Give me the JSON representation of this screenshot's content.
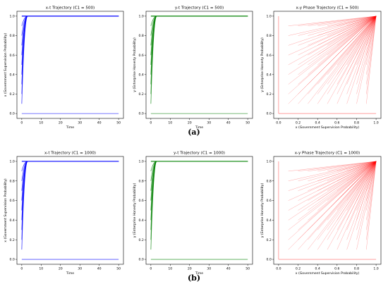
{
  "captions": [
    "(a)",
    "(b)"
  ],
  "colors": {
    "x_traj": "#0000ff",
    "y_traj": "#008000",
    "phase": "#ff0000",
    "axis": "#000000"
  },
  "chart_data": [
    {
      "type": "line",
      "title": "x-t Trajectory (C1 = 500)",
      "xlabel": "Time",
      "ylabel": "x (Government Supervision Probability)",
      "xlim": [
        0,
        50
      ],
      "ylim": [
        0,
        1
      ],
      "xticks": [
        0,
        10,
        20,
        30,
        40,
        50
      ],
      "yticks": [
        0.0,
        0.2,
        0.4,
        0.6,
        0.8,
        1.0
      ],
      "grid": false,
      "color": "#0000ff",
      "initial_values": [
        0.1,
        0.2,
        0.3,
        0.4,
        0.5,
        0.6,
        0.7,
        0.8,
        0.9
      ],
      "converge_time": 3,
      "series": [
        {
          "x": [
            0,
            50
          ],
          "values": [
            1.0,
            1.0
          ]
        },
        {
          "x": [
            0,
            50
          ],
          "values": [
            0.0,
            0.0
          ]
        }
      ]
    },
    {
      "type": "line",
      "title": "y-t Trajectory (C1 = 500)",
      "xlabel": "Time",
      "ylabel": "y (Enterprise Honesty Probability)",
      "xlim": [
        0,
        50
      ],
      "ylim": [
        0,
        1
      ],
      "xticks": [
        0,
        10,
        20,
        30,
        40,
        50
      ],
      "yticks": [
        0.0,
        0.2,
        0.4,
        0.6,
        0.8,
        1.0
      ],
      "grid": false,
      "color": "#008000",
      "initial_values": [
        0.1,
        0.2,
        0.3,
        0.4,
        0.5,
        0.6,
        0.7,
        0.8,
        0.9
      ],
      "converge_time": 3,
      "series": [
        {
          "x": [
            0,
            50
          ],
          "values": [
            1.0,
            1.0
          ]
        },
        {
          "x": [
            0,
            50
          ],
          "values": [
            0.0,
            0.0
          ]
        }
      ]
    },
    {
      "type": "line",
      "title": "x-y Phase Trajectory (C1 = 500)",
      "xlabel": "x (Government Supervision Probability)",
      "ylabel": "y (Enterprise Honesty Probability)",
      "xlim": [
        0,
        1
      ],
      "ylim": [
        0,
        1
      ],
      "xticks": [
        0.0,
        0.2,
        0.4,
        0.6,
        0.8,
        1.0
      ],
      "yticks": [
        0.0,
        0.2,
        0.4,
        0.6,
        0.8,
        1.0
      ],
      "grid": false,
      "color": "#ff0000",
      "start_grid": [
        0.1,
        0.2,
        0.3,
        0.4,
        0.5,
        0.6,
        0.7,
        0.8,
        0.9
      ],
      "endpoint": [
        1.0,
        1.0
      ],
      "boundary_lines": [
        {
          "x": [
            0.0,
            0.0
          ],
          "y": [
            0.0,
            1.0
          ]
        },
        {
          "x": [
            0.0,
            1.0
          ],
          "y": [
            0.0,
            0.0
          ]
        }
      ]
    },
    {
      "type": "line",
      "title": "x-t Trajectory (C1 = 1000)",
      "xlabel": "Time",
      "ylabel": "x (Government Supervision Probability)",
      "xlim": [
        0,
        50
      ],
      "ylim": [
        0,
        1
      ],
      "xticks": [
        0,
        10,
        20,
        30,
        40,
        50
      ],
      "yticks": [
        0.0,
        0.2,
        0.4,
        0.6,
        0.8,
        1.0
      ],
      "grid": false,
      "color": "#0000ff",
      "initial_values": [
        0.1,
        0.2,
        0.3,
        0.4,
        0.5,
        0.6,
        0.7,
        0.8,
        0.9
      ],
      "converge_time": 3,
      "series": [
        {
          "x": [
            0,
            50
          ],
          "values": [
            1.0,
            1.0
          ]
        },
        {
          "x": [
            0,
            50
          ],
          "values": [
            0.0,
            0.0
          ]
        }
      ]
    },
    {
      "type": "line",
      "title": "y-t Trajectory (C1 = 1000)",
      "xlabel": "Time",
      "ylabel": "y (Enterprise Honesty Probability)",
      "xlim": [
        0,
        50
      ],
      "ylim": [
        0,
        1
      ],
      "xticks": [
        0,
        10,
        20,
        30,
        40,
        50
      ],
      "yticks": [
        0.0,
        0.2,
        0.4,
        0.6,
        0.8,
        1.0
      ],
      "grid": false,
      "color": "#008000",
      "initial_values": [
        0.1,
        0.2,
        0.3,
        0.4,
        0.5,
        0.6,
        0.7,
        0.8,
        0.9
      ],
      "converge_time": 3,
      "series": [
        {
          "x": [
            0,
            50
          ],
          "values": [
            1.0,
            1.0
          ]
        },
        {
          "x": [
            0,
            50
          ],
          "values": [
            0.0,
            0.0
          ]
        }
      ]
    },
    {
      "type": "line",
      "title": "x-y Phase Trajectory (C1 = 1000)",
      "xlabel": "x (Government Supervision Probability)",
      "ylabel": "y (Enterprise Honesty Probability)",
      "xlim": [
        0,
        1
      ],
      "ylim": [
        0,
        1
      ],
      "xticks": [
        0.0,
        0.2,
        0.4,
        0.6,
        0.8,
        1.0
      ],
      "yticks": [
        0.0,
        0.2,
        0.4,
        0.6,
        0.8,
        1.0
      ],
      "grid": false,
      "color": "#ff0000",
      "start_grid": [
        0.1,
        0.2,
        0.3,
        0.4,
        0.5,
        0.6,
        0.7,
        0.8,
        0.9
      ],
      "endpoint": [
        1.0,
        1.0
      ],
      "boundary_lines": [
        {
          "x": [
            0.0,
            0.0
          ],
          "y": [
            0.0,
            1.0
          ]
        },
        {
          "x": [
            0.0,
            1.0
          ],
          "y": [
            0.0,
            0.0
          ]
        }
      ]
    }
  ]
}
